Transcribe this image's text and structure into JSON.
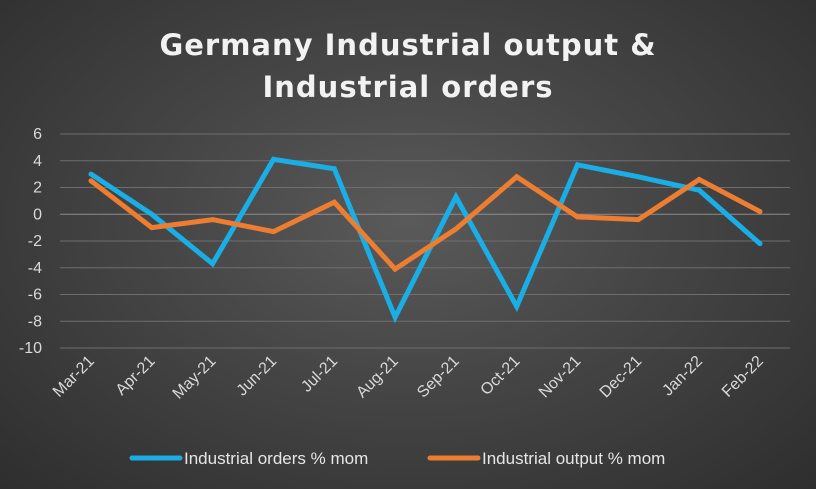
{
  "chart_data": {
    "type": "line",
    "title_lines": [
      "Germany Industrial output &",
      "Industrial orders"
    ],
    "categories": [
      "Mar-21",
      "Apr-21",
      "May-21",
      "Jun-21",
      "Jul-21",
      "Aug-21",
      "Sep-21",
      "Oct-21",
      "Nov-21",
      "Dec-21",
      "Jan-22",
      "Feb-22"
    ],
    "yticks": [
      6,
      4,
      2,
      0,
      -2,
      -4,
      -6,
      -8,
      -10
    ],
    "ylim": [
      -10,
      6
    ],
    "grid": true,
    "legend_position": "bottom",
    "series": [
      {
        "name": "Industrial orders % mom",
        "color": "#1aaee6",
        "values": [
          3.0,
          0.0,
          -3.7,
          4.1,
          3.4,
          -7.7,
          1.3,
          -6.9,
          3.7,
          2.8,
          1.8,
          -2.2
        ]
      },
      {
        "name": "Industrial output % mom",
        "color": "#ed7d31",
        "values": [
          2.5,
          -1.0,
          -0.4,
          -1.3,
          0.9,
          -4.1,
          -1.1,
          2.8,
          -0.2,
          -0.4,
          2.6,
          0.2
        ]
      }
    ]
  }
}
